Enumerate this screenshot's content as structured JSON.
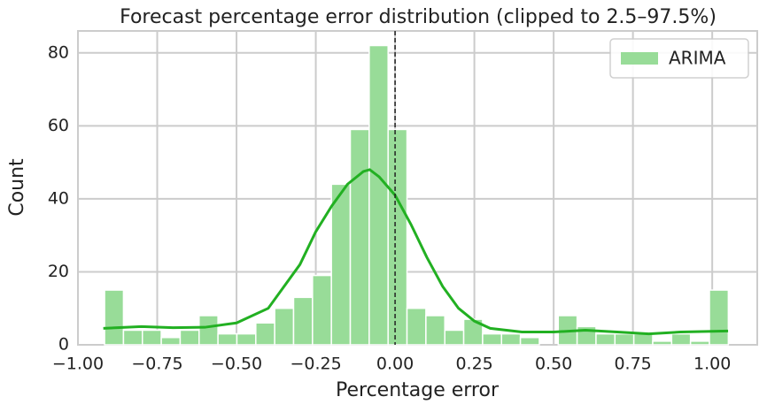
{
  "chart_data": {
    "type": "histogram",
    "title": "Forecast percentage error distribution (clipped to 2.5–97.5%)",
    "x_label": "Percentage error",
    "y_label": "Count",
    "name": "ARIMA",
    "color": "#98dc98",
    "bins": [
      -0.916,
      -0.8564,
      -0.7968,
      -0.7372,
      -0.6776,
      -0.618,
      -0.5584,
      -0.4988,
      -0.4392,
      -0.3796,
      -0.32,
      -0.2604,
      -0.2008,
      -0.1412,
      -0.0816,
      -0.022,
      0.0376,
      0.0972,
      0.1568,
      0.2164,
      0.276,
      0.3356,
      0.3952,
      0.4548,
      0.5144,
      0.574,
      0.6336,
      0.6932,
      0.7528,
      0.8124,
      0.872,
      0.9316,
      0.9912,
      1.0508
    ],
    "values": [
      15,
      4,
      4,
      2,
      4,
      8,
      3,
      3,
      6,
      10,
      13,
      19,
      44,
      59,
      82,
      59,
      10,
      8,
      4,
      7,
      3,
      3,
      2,
      0,
      8,
      5,
      3,
      3,
      3,
      1,
      3,
      1,
      15
    ],
    "kde": {
      "color": "#22b022",
      "x": [
        -0.92,
        -0.8,
        -0.7,
        -0.6,
        -0.5,
        -0.4,
        -0.3,
        -0.25,
        -0.2,
        -0.15,
        -0.1,
        -0.08,
        -0.05,
        0,
        0.05,
        0.1,
        0.15,
        0.2,
        0.25,
        0.3,
        0.4,
        0.5,
        0.6,
        0.7,
        0.8,
        0.9,
        1.05
      ],
      "y": [
        4.5,
        5,
        4.7,
        4.8,
        6,
        10,
        22,
        31,
        38,
        44,
        47.5,
        48,
        46,
        41,
        33,
        24,
        16,
        10,
        6.5,
        4.5,
        3.5,
        3.5,
        4,
        3.5,
        3,
        3.5,
        3.8
      ]
    },
    "reference_line": 0,
    "xlim": [
      -1.0,
      1.142
    ],
    "ylim": [
      0,
      86
    ],
    "xticks": [
      {
        "value": -1,
        "label": "−1.00"
      },
      {
        "value": -0.75,
        "label": "−0.75"
      },
      {
        "value": -0.5,
        "label": "−0.50"
      },
      {
        "value": -0.25,
        "label": "−0.25"
      },
      {
        "value": 0,
        "label": "0.00"
      },
      {
        "value": 0.25,
        "label": "0.25"
      },
      {
        "value": 0.5,
        "label": "0.50"
      },
      {
        "value": 0.75,
        "label": "0.75"
      },
      {
        "value": 1,
        "label": "1.00"
      }
    ],
    "yticks": [
      0,
      20,
      40,
      60,
      80
    ],
    "grid": true,
    "legend": "upper right"
  }
}
